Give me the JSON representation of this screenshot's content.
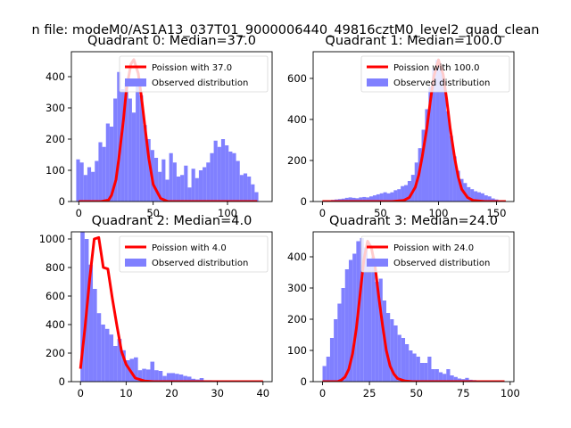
{
  "figure": {
    "suptitle": "n file: modeM0/AS1A13_037T01_9000006440_49816cztM0_level2_quad_clean"
  },
  "colors": {
    "hist": "#8080ff",
    "fit": "#ff0000",
    "axis": "#000000"
  },
  "chart_data": [
    {
      "type": "bar",
      "title": "Quadrant 0: Median=37.0",
      "legend": {
        "placement": "upper right",
        "fit": "Poission with 37.0",
        "hist": "Observed distribution"
      },
      "xlim": [
        -5,
        130
      ],
      "ylim": [
        0,
        480
      ],
      "xticks": [
        0,
        50,
        100
      ],
      "yticks": [
        0,
        100,
        200,
        300,
        400
      ],
      "bin_width": 2.5,
      "bins": {
        "x": [
          -0.5,
          2,
          4.5,
          7,
          9.5,
          12,
          14.5,
          17,
          19.5,
          22,
          24.5,
          27,
          29.5,
          32,
          34.5,
          37,
          39.5,
          42,
          44.5,
          47,
          49.5,
          52,
          54.5,
          57,
          59.5,
          62,
          64.5,
          67,
          69.5,
          72,
          74.5,
          77,
          79.5,
          82,
          84.5,
          87,
          89.5,
          92,
          94.5,
          97,
          99.5,
          102,
          104.5,
          107,
          109.5,
          112,
          114.5,
          117,
          119.5
        ],
        "y": [
          135,
          125,
          85,
          110,
          95,
          130,
          190,
          175,
          250,
          240,
          330,
          415,
          360,
          380,
          330,
          285,
          390,
          340,
          245,
          200,
          165,
          140,
          95,
          135,
          70,
          155,
          125,
          80,
          85,
          115,
          45,
          105,
          75,
          100,
          110,
          125,
          155,
          195,
          175,
          200,
          180,
          160,
          155,
          130,
          85,
          90,
          80,
          55,
          30
        ]
      },
      "fit": {
        "x": [
          0,
          5,
          10,
          15,
          20,
          22,
          25,
          27,
          30,
          32,
          35,
          37,
          40,
          42,
          45,
          47,
          50,
          55,
          60,
          65,
          70,
          80,
          90,
          100,
          110,
          120
        ],
        "y": [
          0,
          0,
          0,
          0,
          5,
          20,
          70,
          140,
          260,
          360,
          440,
          455,
          410,
          340,
          220,
          140,
          55,
          10,
          0,
          0,
          0,
          0,
          0,
          0,
          0,
          0
        ]
      }
    },
    {
      "type": "bar",
      "title": "Quadrant 1: Median=100.0",
      "legend": {
        "placement": "upper right",
        "fit": "Poission with 100.0",
        "hist": "Observed distribution"
      },
      "xlim": [
        -8,
        165
      ],
      "ylim": [
        0,
        730
      ],
      "xticks": [
        0,
        50,
        100,
        150
      ],
      "yticks": [
        0,
        200,
        400,
        600
      ],
      "bin_width": 3.1,
      "bins": {
        "x": [
          3,
          6,
          9,
          12,
          15,
          18,
          21,
          24,
          27,
          30,
          33,
          36,
          39,
          42,
          45,
          48,
          51,
          54,
          57,
          60,
          63,
          66,
          69,
          72,
          75,
          78,
          81,
          84,
          87,
          90,
          93,
          96,
          99,
          102,
          105,
          108,
          111,
          114,
          117,
          120,
          123,
          126,
          129,
          132,
          135,
          138,
          141,
          144,
          147,
          150,
          153,
          156
        ],
        "y": [
          3,
          4,
          8,
          10,
          12,
          14,
          18,
          20,
          18,
          16,
          20,
          22,
          20,
          25,
          30,
          35,
          40,
          45,
          40,
          45,
          55,
          60,
          75,
          80,
          100,
          130,
          190,
          260,
          350,
          450,
          560,
          650,
          690,
          640,
          560,
          440,
          320,
          220,
          150,
          110,
          90,
          70,
          60,
          50,
          45,
          40,
          30,
          25,
          15,
          10,
          6,
          4
        ]
      },
      "fit": {
        "x": [
          0,
          20,
          40,
          60,
          70,
          75,
          80,
          83,
          86,
          90,
          93,
          96,
          100,
          104,
          107,
          110,
          114,
          117,
          120,
          125,
          130,
          140,
          150,
          158
        ],
        "y": [
          0,
          0,
          0,
          0,
          5,
          20,
          70,
          130,
          220,
          360,
          490,
          610,
          690,
          620,
          500,
          360,
          210,
          120,
          60,
          20,
          5,
          0,
          0,
          0
        ]
      }
    },
    {
      "type": "bar",
      "title": "Quadrant 2: Median=4.0",
      "legend": {
        "placement": "upper right",
        "fit": "Poission with 4.0",
        "hist": "Observed distribution"
      },
      "xlim": [
        -2,
        42
      ],
      "ylim": [
        0,
        1050
      ],
      "xticks": [
        0,
        10,
        20,
        30,
        40
      ],
      "yticks": [
        0,
        200,
        400,
        600,
        800,
        1000
      ],
      "bin_width": 0.9,
      "bins": {
        "x": [
          0.45,
          1.35,
          2.25,
          3.15,
          4.05,
          4.95,
          5.85,
          6.75,
          7.65,
          8.55,
          9.45,
          10.35,
          11.25,
          12.15,
          13.05,
          13.95,
          14.85,
          15.75,
          16.65,
          17.55,
          18.45,
          19.35,
          20.25,
          21.15,
          22.05,
          22.95,
          23.85,
          24.75,
          25.65,
          26.55,
          27.45,
          28.35,
          29.25,
          30.15,
          31.05,
          31.95
        ],
        "y": [
          1050,
          1000,
          820,
          650,
          480,
          400,
          370,
          330,
          250,
          300,
          220,
          150,
          160,
          170,
          80,
          90,
          85,
          140,
          80,
          75,
          40,
          60,
          60,
          55,
          50,
          40,
          35,
          20,
          15,
          25,
          10,
          10,
          8,
          5,
          3,
          2
        ]
      },
      "fit": {
        "x": [
          0,
          1,
          2,
          3,
          4,
          5,
          6,
          7,
          8,
          9,
          10,
          12,
          14,
          16,
          20,
          25,
          30,
          35,
          40
        ],
        "y": [
          90,
          380,
          720,
          1000,
          1010,
          800,
          790,
          580,
          390,
          210,
          120,
          25,
          5,
          0,
          0,
          0,
          0,
          0,
          0
        ]
      }
    },
    {
      "type": "bar",
      "title": "Quadrant 3: Median=24.0",
      "legend": {
        "placement": "upper right",
        "fit": "Poission with 24.0",
        "hist": "Observed distribution"
      },
      "xlim": [
        -5,
        102
      ],
      "ylim": [
        0,
        480
      ],
      "xticks": [
        0,
        25,
        50,
        75,
        100
      ],
      "yticks": [
        0,
        100,
        200,
        300,
        400
      ],
      "bin_width": 2,
      "bins": {
        "x": [
          1,
          3,
          5,
          7,
          9,
          11,
          13,
          15,
          17,
          19,
          21,
          23,
          25,
          27,
          29,
          31,
          33,
          35,
          37,
          39,
          41,
          43,
          45,
          47,
          49,
          51,
          53,
          55,
          57,
          59,
          61,
          63,
          65,
          67,
          69,
          71,
          73,
          75,
          77,
          79,
          81,
          83,
          85,
          87,
          89,
          91,
          93,
          95
        ],
        "y": [
          50,
          80,
          140,
          200,
          250,
          300,
          360,
          390,
          410,
          450,
          460,
          430,
          380,
          400,
          320,
          330,
          260,
          220,
          200,
          180,
          150,
          140,
          120,
          100,
          90,
          80,
          60,
          60,
          80,
          40,
          40,
          30,
          25,
          40,
          20,
          15,
          10,
          8,
          12,
          6,
          5,
          4,
          3,
          2,
          2,
          1,
          1,
          1
        ]
      },
      "fit": {
        "x": [
          0,
          5,
          8,
          10,
          12,
          14,
          16,
          18,
          20,
          22,
          24,
          26,
          28,
          30,
          32,
          34,
          36,
          38,
          40,
          44,
          48,
          55,
          60,
          70,
          80,
          90,
          97
        ],
        "y": [
          0,
          0,
          0,
          5,
          15,
          40,
          90,
          170,
          280,
          390,
          450,
          430,
          370,
          270,
          180,
          100,
          50,
          25,
          10,
          2,
          0,
          0,
          0,
          0,
          0,
          0,
          0
        ]
      }
    }
  ]
}
